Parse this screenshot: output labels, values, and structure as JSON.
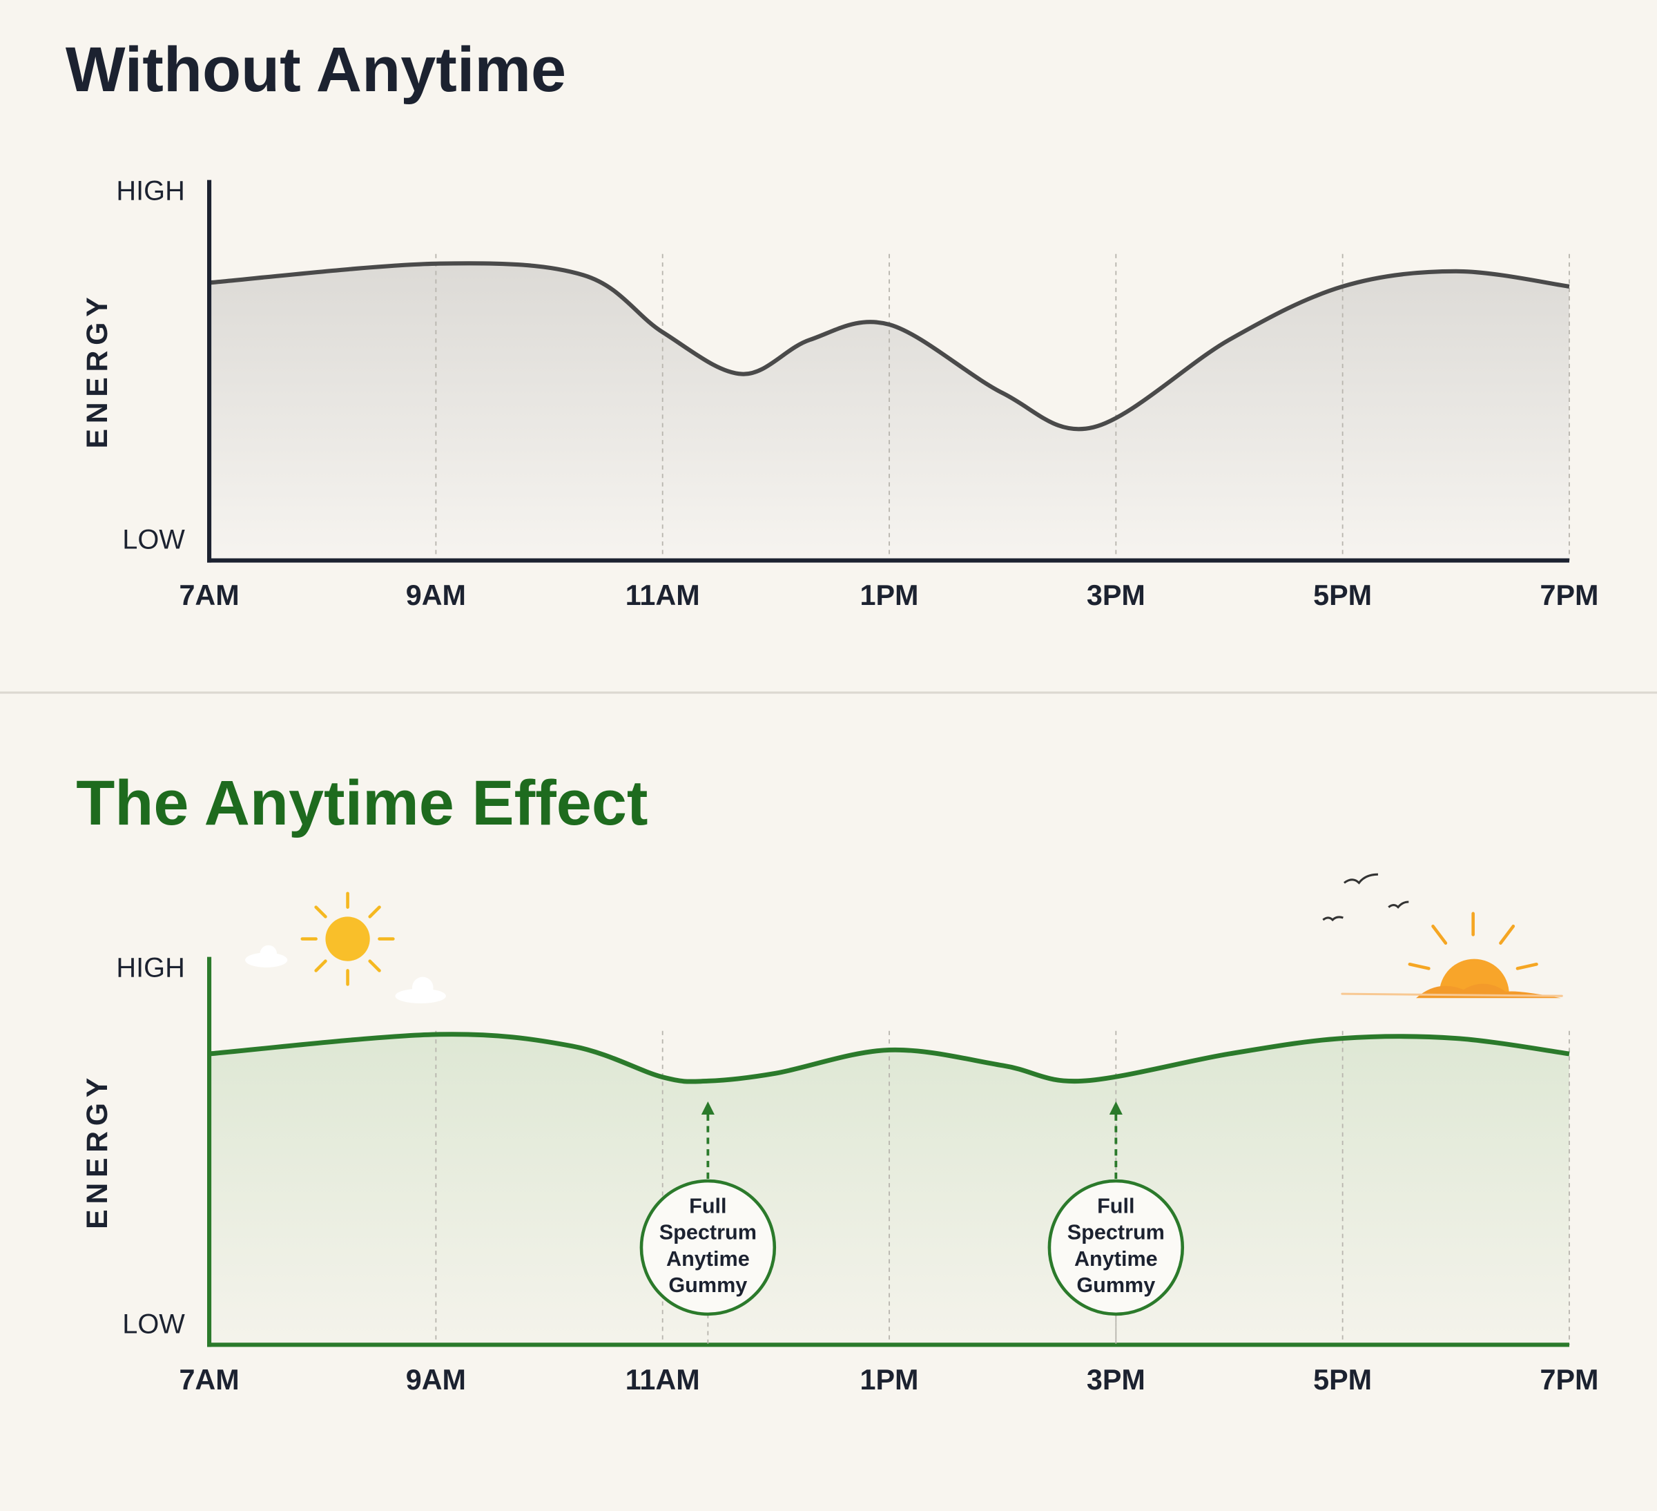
{
  "chart_data": [
    {
      "type": "area",
      "title": "Without Anytime",
      "ylabel": "ENERGY",
      "color": "#4a4a4a",
      "grid": true,
      "x": [
        7,
        9,
        10.3,
        11,
        11.7,
        12.3,
        13,
        14,
        14.8,
        16,
        17,
        18,
        19
      ],
      "values": [
        73,
        78,
        75,
        60,
        49,
        58,
        62,
        44,
        35,
        58,
        72,
        76,
        72
      ],
      "xlim": [
        7,
        19
      ],
      "ylim": [
        0,
        100
      ],
      "xticks": [
        {
          "value": 7,
          "label": "7AM"
        },
        {
          "value": 9,
          "label": "9AM"
        },
        {
          "value": 11,
          "label": "11AM"
        },
        {
          "value": 13,
          "label": "1PM"
        },
        {
          "value": 15,
          "label": "3PM"
        },
        {
          "value": 17,
          "label": "5PM"
        },
        {
          "value": 19,
          "label": "7PM"
        }
      ],
      "yticks": [
        {
          "value": 0,
          "label": "LOW"
        },
        {
          "value": 100,
          "label": "HIGH"
        }
      ]
    },
    {
      "type": "area",
      "title": "The Anytime Effect",
      "ylabel": "ENERGY",
      "color": "#2b7a2b",
      "grid": true,
      "x": [
        7,
        9,
        10.2,
        11,
        11.4,
        12,
        13,
        14,
        14.7,
        16,
        17,
        18,
        19
      ],
      "values": [
        75,
        80,
        77,
        69,
        68,
        70,
        76,
        72,
        68,
        75,
        79,
        79,
        75
      ],
      "xlim": [
        7,
        19
      ],
      "ylim": [
        0,
        100
      ],
      "xticks": [
        {
          "value": 7,
          "label": "7AM"
        },
        {
          "value": 9,
          "label": "9AM"
        },
        {
          "value": 11,
          "label": "11AM"
        },
        {
          "value": 13,
          "label": "1PM"
        },
        {
          "value": 15,
          "label": "3PM"
        },
        {
          "value": 17,
          "label": "5PM"
        },
        {
          "value": 19,
          "label": "7PM"
        }
      ],
      "yticks": [
        {
          "value": 0,
          "label": "LOW"
        },
        {
          "value": 100,
          "label": "HIGH"
        }
      ],
      "annotations": [
        {
          "x": 11.4,
          "text": [
            "Full",
            "Spectrum",
            "Anytime",
            "Gummy"
          ]
        },
        {
          "x": 15,
          "text": [
            "Full",
            "Spectrum",
            "Anytime",
            "Gummy"
          ]
        }
      ]
    }
  ]
}
